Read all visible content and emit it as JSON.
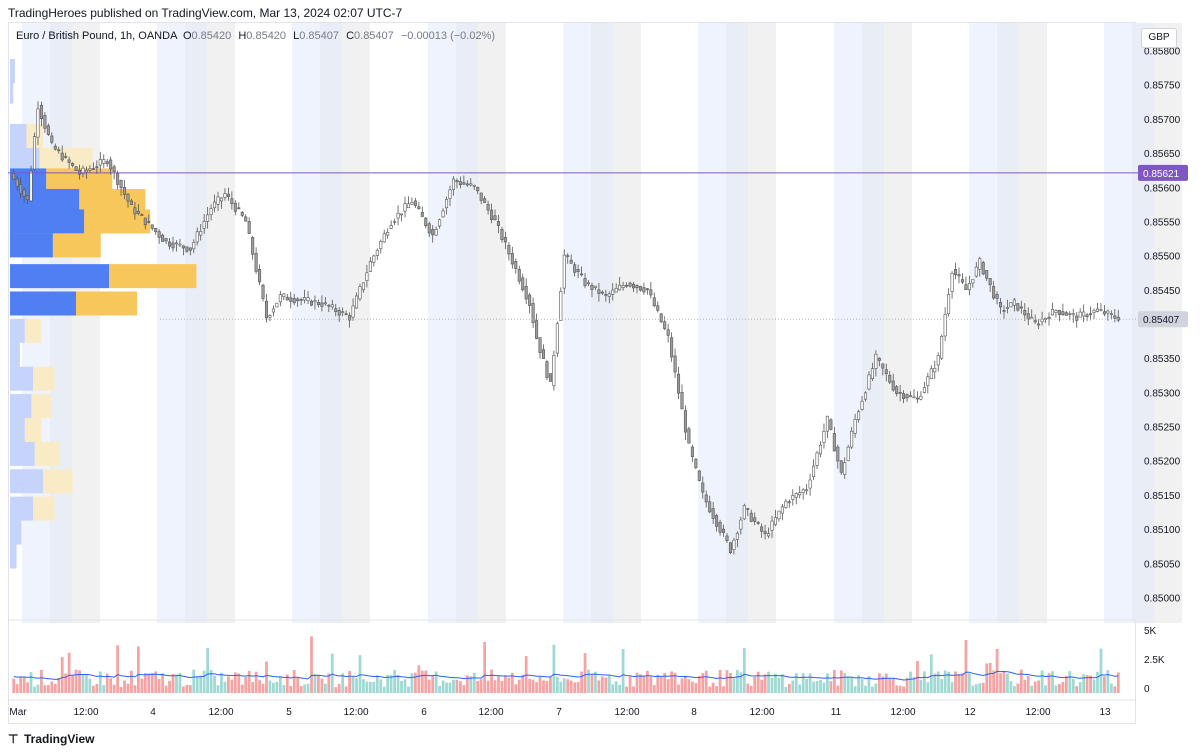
{
  "header": {
    "published_text": "TradingHeroes published on TradingView.com, Mar 13, 2024 02:07 UTC-7"
  },
  "legend": {
    "symbol": "Euro / British Pound, 1h, OANDA",
    "o_label": "O",
    "o_value": "0.85420",
    "h_label": "H",
    "h_value": "0.85420",
    "l_label": "L",
    "l_value": "0.85407",
    "c_label": "C",
    "c_value": "0.85407",
    "change": "−0.00013 (−0.02%)"
  },
  "currency_label": "GBP",
  "price_labels": {
    "last_price": "0.85407",
    "horizontal_line": "0.85621"
  },
  "colors": {
    "candle_fill": "#9e9e9e",
    "candle_hollow": "#ffffff",
    "candle_stroke": "#555555",
    "vp_buy": "#4f7ff2",
    "vp_sell": "#f7c75b",
    "vp_buy_light": "#c6d4fb",
    "vp_sell_light": "#faebc7",
    "line": "#7e57c2",
    "vol_up": "#9fd9d4",
    "vol_down": "#f5a3a3",
    "vol_ma": "#2962ff",
    "session_blue": "#eef3fd",
    "session_grey": "#f1f1f1"
  },
  "footer": {
    "logo_text": "TradingView"
  },
  "chart_data": {
    "type": "candlestick",
    "price_axis": {
      "min": 0.8497,
      "max": 0.8583,
      "ticks": [
        "0.85800",
        "0.85750",
        "0.85700",
        "0.85650",
        "0.85600",
        "0.85550",
        "0.85500",
        "0.85450",
        "0.85350",
        "0.85300",
        "0.85250",
        "0.85200",
        "0.85150",
        "0.85100",
        "0.85050",
        "0.85000"
      ]
    },
    "volume_axis": {
      "max": 6000,
      "ticks": [
        "5K",
        "2.5K",
        "0"
      ]
    },
    "x_axis": {
      "ticks": [
        "Mar",
        "12:00",
        "4",
        "12:00",
        "5",
        "12:00",
        "6",
        "12:00",
        "7",
        "12:00",
        "8",
        "12:00",
        "11",
        "12:00",
        "12",
        "12:00",
        "13"
      ]
    },
    "horizontal_line": 0.85621,
    "last_price": 0.85407,
    "volume_profile": [
      {
        "price": 0.8577,
        "buy": 3,
        "sell": 0
      },
      {
        "price": 0.8574,
        "buy": 2,
        "sell": 0
      },
      {
        "price": 0.85675,
        "buy": 10,
        "sell": 10
      },
      {
        "price": 0.8564,
        "buy": 18,
        "sell": 32
      },
      {
        "price": 0.8561,
        "buy": 22,
        "sell": 40
      },
      {
        "price": 0.8558,
        "buy": 42,
        "sell": 40
      },
      {
        "price": 0.8555,
        "buy": 45,
        "sell": 40
      },
      {
        "price": 0.85515,
        "buy": 26,
        "sell": 29
      },
      {
        "price": 0.8547,
        "buy": 60,
        "sell": 53
      },
      {
        "price": 0.8543,
        "buy": 40,
        "sell": 37
      },
      {
        "price": 0.8539,
        "buy": 9,
        "sell": 10
      },
      {
        "price": 0.85355,
        "buy": 6,
        "sell": 0
      },
      {
        "price": 0.8532,
        "buy": 14,
        "sell": 13
      },
      {
        "price": 0.8528,
        "buy": 13,
        "sell": 12
      },
      {
        "price": 0.85245,
        "buy": 9,
        "sell": 10
      },
      {
        "price": 0.8521,
        "buy": 15,
        "sell": 15
      },
      {
        "price": 0.8517,
        "buy": 20,
        "sell": 18
      },
      {
        "price": 0.8513,
        "buy": 14,
        "sell": 13
      },
      {
        "price": 0.85095,
        "buy": 7,
        "sell": 0
      },
      {
        "price": 0.8506,
        "buy": 4,
        "sell": 0
      }
    ],
    "anchor_points": [
      [
        0,
        0.8562
      ],
      [
        5,
        0.8558
      ],
      [
        8,
        0.8572
      ],
      [
        12,
        0.8566
      ],
      [
        20,
        0.8562
      ],
      [
        28,
        0.8564
      ],
      [
        35,
        0.8557
      ],
      [
        45,
        0.8552
      ],
      [
        52,
        0.8551
      ],
      [
        58,
        0.8557
      ],
      [
        62,
        0.8559
      ],
      [
        68,
        0.8555
      ],
      [
        74,
        0.8541
      ],
      [
        78,
        0.8544
      ],
      [
        90,
        0.8543
      ],
      [
        98,
        0.8541
      ],
      [
        104,
        0.8549
      ],
      [
        110,
        0.8555
      ],
      [
        116,
        0.8558
      ],
      [
        122,
        0.8553
      ],
      [
        128,
        0.8561
      ],
      [
        134,
        0.856
      ],
      [
        140,
        0.8555
      ],
      [
        146,
        0.8548
      ],
      [
        150,
        0.8543
      ],
      [
        152,
        0.8538
      ],
      [
        156,
        0.8531
      ],
      [
        160,
        0.855
      ],
      [
        166,
        0.8546
      ],
      [
        172,
        0.8544
      ],
      [
        178,
        0.8546
      ],
      [
        184,
        0.8545
      ],
      [
        190,
        0.8538
      ],
      [
        196,
        0.8522
      ],
      [
        200,
        0.8515
      ],
      [
        204,
        0.8511
      ],
      [
        208,
        0.8507
      ],
      [
        212,
        0.8513
      ],
      [
        218,
        0.8509
      ],
      [
        224,
        0.8514
      ],
      [
        230,
        0.8516
      ],
      [
        236,
        0.8526
      ],
      [
        240,
        0.8518
      ],
      [
        244,
        0.8526
      ],
      [
        250,
        0.8535
      ],
      [
        256,
        0.853
      ],
      [
        262,
        0.8529
      ],
      [
        268,
        0.8535
      ],
      [
        272,
        0.8548
      ],
      [
        276,
        0.8545
      ],
      [
        280,
        0.8549
      ],
      [
        286,
        0.8542
      ],
      [
        290,
        0.8543
      ],
      [
        296,
        0.854
      ],
      [
        302,
        0.8542
      ],
      [
        308,
        0.8541
      ],
      [
        314,
        0.8542
      ],
      [
        319,
        0.8541
      ]
    ]
  }
}
